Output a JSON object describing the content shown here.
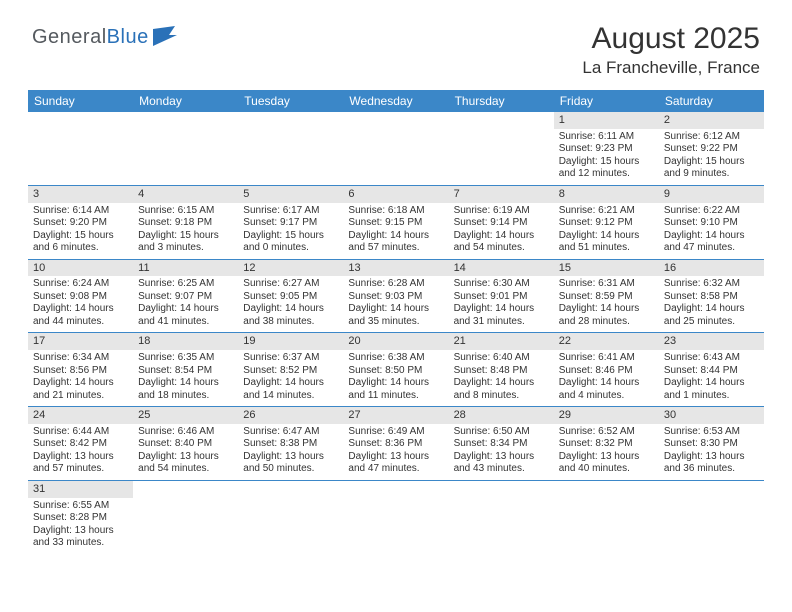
{
  "logo": {
    "part1": "General",
    "part2": "Blue"
  },
  "title": "August 2025",
  "location": "La Francheville, France",
  "colors": {
    "header_bg": "#3b87c8",
    "daynum_bg": "#e6e6e6",
    "border": "#3b87c8",
    "logo_gray": "#555a5f",
    "logo_blue": "#2a71b8"
  },
  "day_labels": [
    "Sunday",
    "Monday",
    "Tuesday",
    "Wednesday",
    "Thursday",
    "Friday",
    "Saturday"
  ],
  "weeks": [
    [
      null,
      null,
      null,
      null,
      null,
      {
        "n": "1",
        "sr": "6:11 AM",
        "ss": "9:23 PM",
        "dh": "15",
        "dm": "12"
      },
      {
        "n": "2",
        "sr": "6:12 AM",
        "ss": "9:22 PM",
        "dh": "15",
        "dm": "9"
      }
    ],
    [
      {
        "n": "3",
        "sr": "6:14 AM",
        "ss": "9:20 PM",
        "dh": "15",
        "dm": "6"
      },
      {
        "n": "4",
        "sr": "6:15 AM",
        "ss": "9:18 PM",
        "dh": "15",
        "dm": "3"
      },
      {
        "n": "5",
        "sr": "6:17 AM",
        "ss": "9:17 PM",
        "dh": "15",
        "dm": "0"
      },
      {
        "n": "6",
        "sr": "6:18 AM",
        "ss": "9:15 PM",
        "dh": "14",
        "dm": "57"
      },
      {
        "n": "7",
        "sr": "6:19 AM",
        "ss": "9:14 PM",
        "dh": "14",
        "dm": "54"
      },
      {
        "n": "8",
        "sr": "6:21 AM",
        "ss": "9:12 PM",
        "dh": "14",
        "dm": "51"
      },
      {
        "n": "9",
        "sr": "6:22 AM",
        "ss": "9:10 PM",
        "dh": "14",
        "dm": "47"
      }
    ],
    [
      {
        "n": "10",
        "sr": "6:24 AM",
        "ss": "9:08 PM",
        "dh": "14",
        "dm": "44"
      },
      {
        "n": "11",
        "sr": "6:25 AM",
        "ss": "9:07 PM",
        "dh": "14",
        "dm": "41"
      },
      {
        "n": "12",
        "sr": "6:27 AM",
        "ss": "9:05 PM",
        "dh": "14",
        "dm": "38"
      },
      {
        "n": "13",
        "sr": "6:28 AM",
        "ss": "9:03 PM",
        "dh": "14",
        "dm": "35"
      },
      {
        "n": "14",
        "sr": "6:30 AM",
        "ss": "9:01 PM",
        "dh": "14",
        "dm": "31"
      },
      {
        "n": "15",
        "sr": "6:31 AM",
        "ss": "8:59 PM",
        "dh": "14",
        "dm": "28"
      },
      {
        "n": "16",
        "sr": "6:32 AM",
        "ss": "8:58 PM",
        "dh": "14",
        "dm": "25"
      }
    ],
    [
      {
        "n": "17",
        "sr": "6:34 AM",
        "ss": "8:56 PM",
        "dh": "14",
        "dm": "21"
      },
      {
        "n": "18",
        "sr": "6:35 AM",
        "ss": "8:54 PM",
        "dh": "14",
        "dm": "18"
      },
      {
        "n": "19",
        "sr": "6:37 AM",
        "ss": "8:52 PM",
        "dh": "14",
        "dm": "14"
      },
      {
        "n": "20",
        "sr": "6:38 AM",
        "ss": "8:50 PM",
        "dh": "14",
        "dm": "11"
      },
      {
        "n": "21",
        "sr": "6:40 AM",
        "ss": "8:48 PM",
        "dh": "14",
        "dm": "8"
      },
      {
        "n": "22",
        "sr": "6:41 AM",
        "ss": "8:46 PM",
        "dh": "14",
        "dm": "4"
      },
      {
        "n": "23",
        "sr": "6:43 AM",
        "ss": "8:44 PM",
        "dh": "14",
        "dm": "1"
      }
    ],
    [
      {
        "n": "24",
        "sr": "6:44 AM",
        "ss": "8:42 PM",
        "dh": "13",
        "dm": "57"
      },
      {
        "n": "25",
        "sr": "6:46 AM",
        "ss": "8:40 PM",
        "dh": "13",
        "dm": "54"
      },
      {
        "n": "26",
        "sr": "6:47 AM",
        "ss": "8:38 PM",
        "dh": "13",
        "dm": "50"
      },
      {
        "n": "27",
        "sr": "6:49 AM",
        "ss": "8:36 PM",
        "dh": "13",
        "dm": "47"
      },
      {
        "n": "28",
        "sr": "6:50 AM",
        "ss": "8:34 PM",
        "dh": "13",
        "dm": "43"
      },
      {
        "n": "29",
        "sr": "6:52 AM",
        "ss": "8:32 PM",
        "dh": "13",
        "dm": "40"
      },
      {
        "n": "30",
        "sr": "6:53 AM",
        "ss": "8:30 PM",
        "dh": "13",
        "dm": "36"
      }
    ],
    [
      {
        "n": "31",
        "sr": "6:55 AM",
        "ss": "8:28 PM",
        "dh": "13",
        "dm": "33"
      },
      null,
      null,
      null,
      null,
      null,
      null
    ]
  ]
}
